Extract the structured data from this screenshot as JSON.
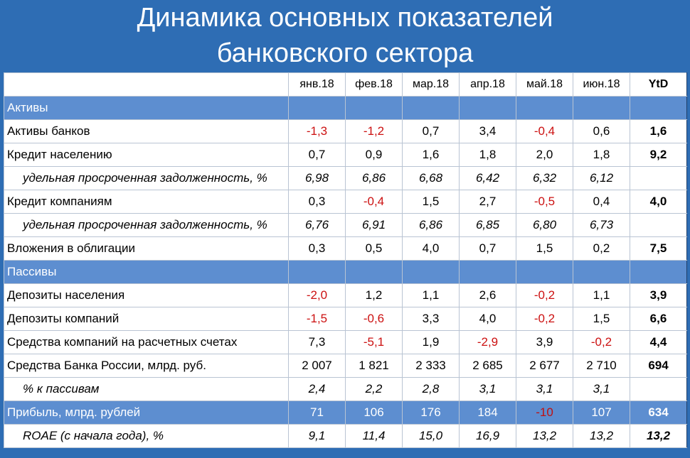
{
  "title": {
    "line1": "Динамика основных показателей",
    "line2": "банковского сектора"
  },
  "columns": [
    "",
    "янв.18",
    "фев.18",
    "мар.18",
    "апр.18",
    "май.18",
    "июн.18",
    "YtD"
  ],
  "rows": [
    {
      "type": "section",
      "label": "Активы",
      "values": [
        "",
        "",
        "",
        "",
        "",
        ""
      ],
      "ytd": ""
    },
    {
      "type": "normal",
      "label": "Активы банков",
      "values": [
        "-1,3",
        "-1,2",
        "0,7",
        "3,4",
        "-0,4",
        "0,6"
      ],
      "ytd": "1,6"
    },
    {
      "type": "normal",
      "label": "Кредит населению",
      "values": [
        "0,7",
        "0,9",
        "1,6",
        "1,8",
        "2,0",
        "1,8"
      ],
      "ytd": "9,2"
    },
    {
      "type": "sub",
      "label": "удельная просроченная задолженность, %",
      "values": [
        "6,98",
        "6,86",
        "6,68",
        "6,42",
        "6,32",
        "6,12"
      ],
      "ytd": ""
    },
    {
      "type": "normal",
      "label": "Кредит компаниям",
      "values": [
        "0,3",
        "-0,4",
        "1,5",
        "2,7",
        "-0,5",
        "0,4"
      ],
      "ytd": "4,0"
    },
    {
      "type": "sub",
      "label": "удельная просроченная задолженность, %",
      "values": [
        "6,76",
        "6,91",
        "6,86",
        "6,85",
        "6,80",
        "6,73"
      ],
      "ytd": ""
    },
    {
      "type": "normal",
      "label": "Вложения в облигации",
      "values": [
        "0,3",
        "0,5",
        "4,0",
        "0,7",
        "1,5",
        "0,2"
      ],
      "ytd": "7,5"
    },
    {
      "type": "section",
      "label": "Пассивы",
      "values": [
        "",
        "",
        "",
        "",
        "",
        ""
      ],
      "ytd": ""
    },
    {
      "type": "normal",
      "label": "Депозиты населения",
      "values": [
        "-2,0",
        "1,2",
        "1,1",
        "2,6",
        "-0,2",
        "1,1"
      ],
      "ytd": "3,9"
    },
    {
      "type": "normal",
      "label": "Депозиты компаний",
      "values": [
        "-1,5",
        "-0,6",
        "3,3",
        "4,0",
        "-0,2",
        "1,5"
      ],
      "ytd": "6,6"
    },
    {
      "type": "normal",
      "label": "Средства компаний на расчетных счетах",
      "values": [
        "7,3",
        "-5,1",
        "1,9",
        "-2,9",
        "3,9",
        "-0,2"
      ],
      "ytd": "4,4"
    },
    {
      "type": "normal",
      "label": "Средства Банка России, млрд. руб.",
      "values": [
        "2 007",
        "1 821",
        "2 333",
        "2 685",
        "2 677",
        "2 710"
      ],
      "ytd": "694"
    },
    {
      "type": "sub",
      "label": "% к пассивам",
      "values": [
        "2,4",
        "2,2",
        "2,8",
        "3,1",
        "3,1",
        "3,1"
      ],
      "ytd": ""
    },
    {
      "type": "profit",
      "label": "Прибыль, млрд. рублей",
      "values": [
        "71",
        "106",
        "176",
        "184",
        "-10",
        "107"
      ],
      "ytd": "634"
    },
    {
      "type": "sub",
      "label": "ROAE (с начала года), %",
      "values": [
        "9,1",
        "11,4",
        "15,0",
        "16,9",
        "13,2",
        "13,2"
      ],
      "ytd": "13,2"
    }
  ],
  "colors": {
    "background": "#2e6db4",
    "section_fill": "#5d8ed0",
    "negative": "#cc1111"
  }
}
